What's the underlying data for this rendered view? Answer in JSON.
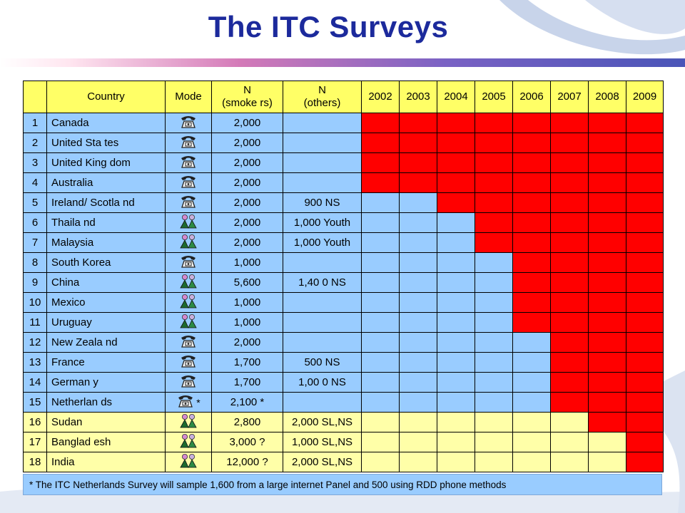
{
  "title": "The ITC Surveys",
  "colors": {
    "header_bg": "#ffff66",
    "group_a_bg": "#99ccff",
    "group_b_bg": "#ffffa8",
    "active_year": "#ff0000",
    "title_color": "#1c2a9c"
  },
  "headers": {
    "country": "Country",
    "mode": "Mode",
    "n_smokers": [
      "N",
      "(smoke rs)"
    ],
    "n_others": [
      "N",
      "(others)"
    ],
    "years": [
      "2002",
      "2003",
      "2004",
      "2005",
      "2006",
      "2007",
      "2008",
      "2009"
    ]
  },
  "rows": [
    {
      "num": "1",
      "country": "Canada",
      "mode": "telephone-icon",
      "star": "",
      "n": "2,000",
      "others": "",
      "start": 2002,
      "group": "a"
    },
    {
      "num": "2",
      "country": "United Sta tes",
      "mode": "telephone-icon",
      "star": "",
      "n": "2,000",
      "others": "",
      "start": 2002,
      "group": "a"
    },
    {
      "num": "3",
      "country": "United King dom",
      "mode": "telephone-icon",
      "star": "",
      "n": "2,000",
      "others": "",
      "start": 2002,
      "group": "a"
    },
    {
      "num": "4",
      "country": "Australia",
      "mode": "telephone-icon",
      "star": "",
      "n": "2,000",
      "others": "",
      "start": 2002,
      "group": "a"
    },
    {
      "num": "5",
      "country": "Ireland/ Scotla nd",
      "mode": "telephone-icon",
      "star": "",
      "n": "2,000",
      "others": "900 NS",
      "start": 2004,
      "group": "a"
    },
    {
      "num": "6",
      "country": "Thaila nd",
      "mode": "face-to-face-icon",
      "star": "",
      "n": "2,000",
      "others": "1,000 Youth",
      "start": 2005,
      "group": "a"
    },
    {
      "num": "7",
      "country": "Malaysia",
      "mode": "face-to-face-icon",
      "star": "",
      "n": "2,000",
      "others": "1,000 Youth",
      "start": 2005,
      "group": "a"
    },
    {
      "num": "8",
      "country": "South Korea",
      "mode": "telephone-icon",
      "star": "",
      "n": "1,000",
      "others": "",
      "start": 2006,
      "group": "a"
    },
    {
      "num": "9",
      "country": "China",
      "mode": "face-to-face-icon",
      "star": "",
      "n": "5,600",
      "others": "1,40 0 NS",
      "start": 2006,
      "group": "a"
    },
    {
      "num": "10",
      "country": "Mexico",
      "mode": "face-to-face-icon",
      "star": "",
      "n": "1,000",
      "others": "",
      "start": 2006,
      "group": "a"
    },
    {
      "num": "11",
      "country": "Uruguay",
      "mode": "face-to-face-icon",
      "star": "",
      "n": "1,000",
      "others": "",
      "start": 2006,
      "group": "a"
    },
    {
      "num": "12",
      "country": "New Zeala nd",
      "mode": "telephone-icon",
      "star": "",
      "n": "2,000",
      "others": "",
      "start": 2007,
      "group": "a"
    },
    {
      "num": "13",
      "country": "France",
      "mode": "telephone-icon",
      "star": "",
      "n": "1,700",
      "others": "500 NS",
      "start": 2007,
      "group": "a"
    },
    {
      "num": "14",
      "country": "German y",
      "mode": "telephone-icon",
      "star": "",
      "n": "1,700",
      "others": "1,00 0 NS",
      "start": 2007,
      "group": "a"
    },
    {
      "num": "15",
      "country": "Netherlan ds",
      "mode": "telephone-icon",
      "star": "*",
      "n": "2,100 *",
      "others": "",
      "start": 2007,
      "group": "a"
    },
    {
      "num": "16",
      "country": "Sudan",
      "mode": "face-to-face-icon",
      "star": "",
      "n": "2,800",
      "others": "2,000 SL,NS",
      "start": 2008,
      "group": "b"
    },
    {
      "num": "17",
      "country": "Banglad esh",
      "mode": "face-to-face-icon",
      "star": "",
      "n": "3,000 ?",
      "others": "1,000 SL,NS",
      "start": 2009,
      "group": "b"
    },
    {
      "num": "18",
      "country": "India",
      "mode": "face-to-face-icon",
      "star": "",
      "n": "12,000 ?",
      "others": "2,000 SL,NS",
      "start": 2009,
      "group": "b"
    }
  ],
  "footnote": "* The ITC Netherlands Survey will sample 1,600 from a large internet Panel and 500 using RDD phone methods"
}
